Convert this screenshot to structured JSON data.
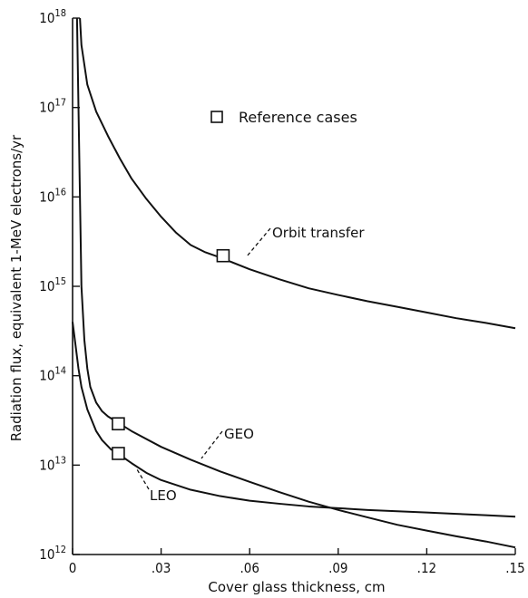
{
  "chart_data": {
    "type": "line",
    "xlabel": "Cover glass thickness,  cm",
    "ylabel": "Radiation flux,  equivalent 1-MeV electrons/yr",
    "xlim": [
      0,
      0.15
    ],
    "ylim_log10": [
      12,
      18
    ],
    "y_scale": "log",
    "grid": false,
    "x_ticks": [
      0,
      0.03,
      0.06,
      0.09,
      0.12,
      0.15
    ],
    "x_tick_labels": [
      "0",
      ".03",
      ".06",
      ".09",
      ".12",
      ".15"
    ],
    "y_tick_exponents": [
      12,
      13,
      14,
      15,
      16,
      17,
      18
    ],
    "y_tick_base": "10",
    "legend": {
      "marker": "square",
      "label": "Reference cases",
      "placement": "upper-center"
    },
    "series": [
      {
        "name": "Orbit transfer",
        "x": [
          0.0025,
          0.003,
          0.005,
          0.008,
          0.012,
          0.016,
          0.02,
          0.025,
          0.03,
          0.035,
          0.04,
          0.045,
          0.05,
          0.06,
          0.07,
          0.08,
          0.09,
          0.1,
          0.11,
          0.12,
          0.13,
          0.14,
          0.15
        ],
        "y": [
          1e+18,
          5e+17,
          1.8e+17,
          9e+16,
          4.8e+16,
          2.7e+16,
          1.6e+16,
          9500000000000000.0,
          6000000000000000.0,
          4000000000000000.0,
          2900000000000000.0,
          2400000000000000.0,
          2100000000000000.0,
          1550000000000000.0,
          1200000000000000.0,
          950000000000000.0,
          800000000000000.0,
          680000000000000.0,
          590000000000000.0,
          510000000000000.0,
          440000000000000.0,
          390000000000000.0,
          340000000000000.0
        ],
        "reference_case": {
          "x": 0.051,
          "y": 2200000000000000.0
        }
      },
      {
        "name": "GEO",
        "x": [
          0.0015,
          0.002,
          0.003,
          0.004,
          0.005,
          0.006,
          0.008,
          0.01,
          0.012,
          0.016,
          0.02,
          0.03,
          0.04,
          0.05,
          0.06,
          0.07,
          0.08,
          0.09,
          0.1,
          0.11,
          0.12,
          0.13,
          0.14,
          0.15
        ],
        "y": [
          1e+18,
          1e+17,
          1000000000000000.0,
          250000000000000.0,
          120000000000000.0,
          75000000000000.0,
          50000000000000.0,
          40000000000000.0,
          35000000000000.0,
          29000000000000.0,
          24000000000000.0,
          16000000000000.0,
          11500000000000.0,
          8500000000000.0,
          6500000000000.0,
          5000000000000.0,
          3900000000000.0,
          3150000000000.0,
          2600000000000.0,
          2150000000000.0,
          1850000000000.0,
          1600000000000.0,
          1400000000000.0,
          1200000000000.0
        ],
        "reference_case": {
          "x": 0.0155,
          "y": 29000000000000.0
        }
      },
      {
        "name": "LEO",
        "x": [
          0,
          0.001,
          0.002,
          0.003,
          0.005,
          0.008,
          0.01,
          0.013,
          0.016,
          0.02,
          0.025,
          0.03,
          0.04,
          0.05,
          0.06,
          0.07,
          0.08,
          0.09,
          0.1,
          0.11,
          0.12,
          0.13,
          0.14,
          0.15
        ],
        "y": [
          400000000000000.0,
          220000000000000.0,
          120000000000000.0,
          75000000000000.0,
          42000000000000.0,
          24000000000000.0,
          19000000000000.0,
          15000000000000.0,
          13000000000000.0,
          10500000000000.0,
          8200000000000.0,
          6800000000000.0,
          5300000000000.0,
          4500000000000.0,
          4000000000000.0,
          3700000000000.0,
          3450000000000.0,
          3300000000000.0,
          3150000000000.0,
          3050000000000.0,
          2950000000000.0,
          2850000000000.0,
          2750000000000.0,
          2650000000000.0
        ],
        "reference_case": {
          "x": 0.0155,
          "y": 13500000000000.0
        }
      }
    ]
  }
}
